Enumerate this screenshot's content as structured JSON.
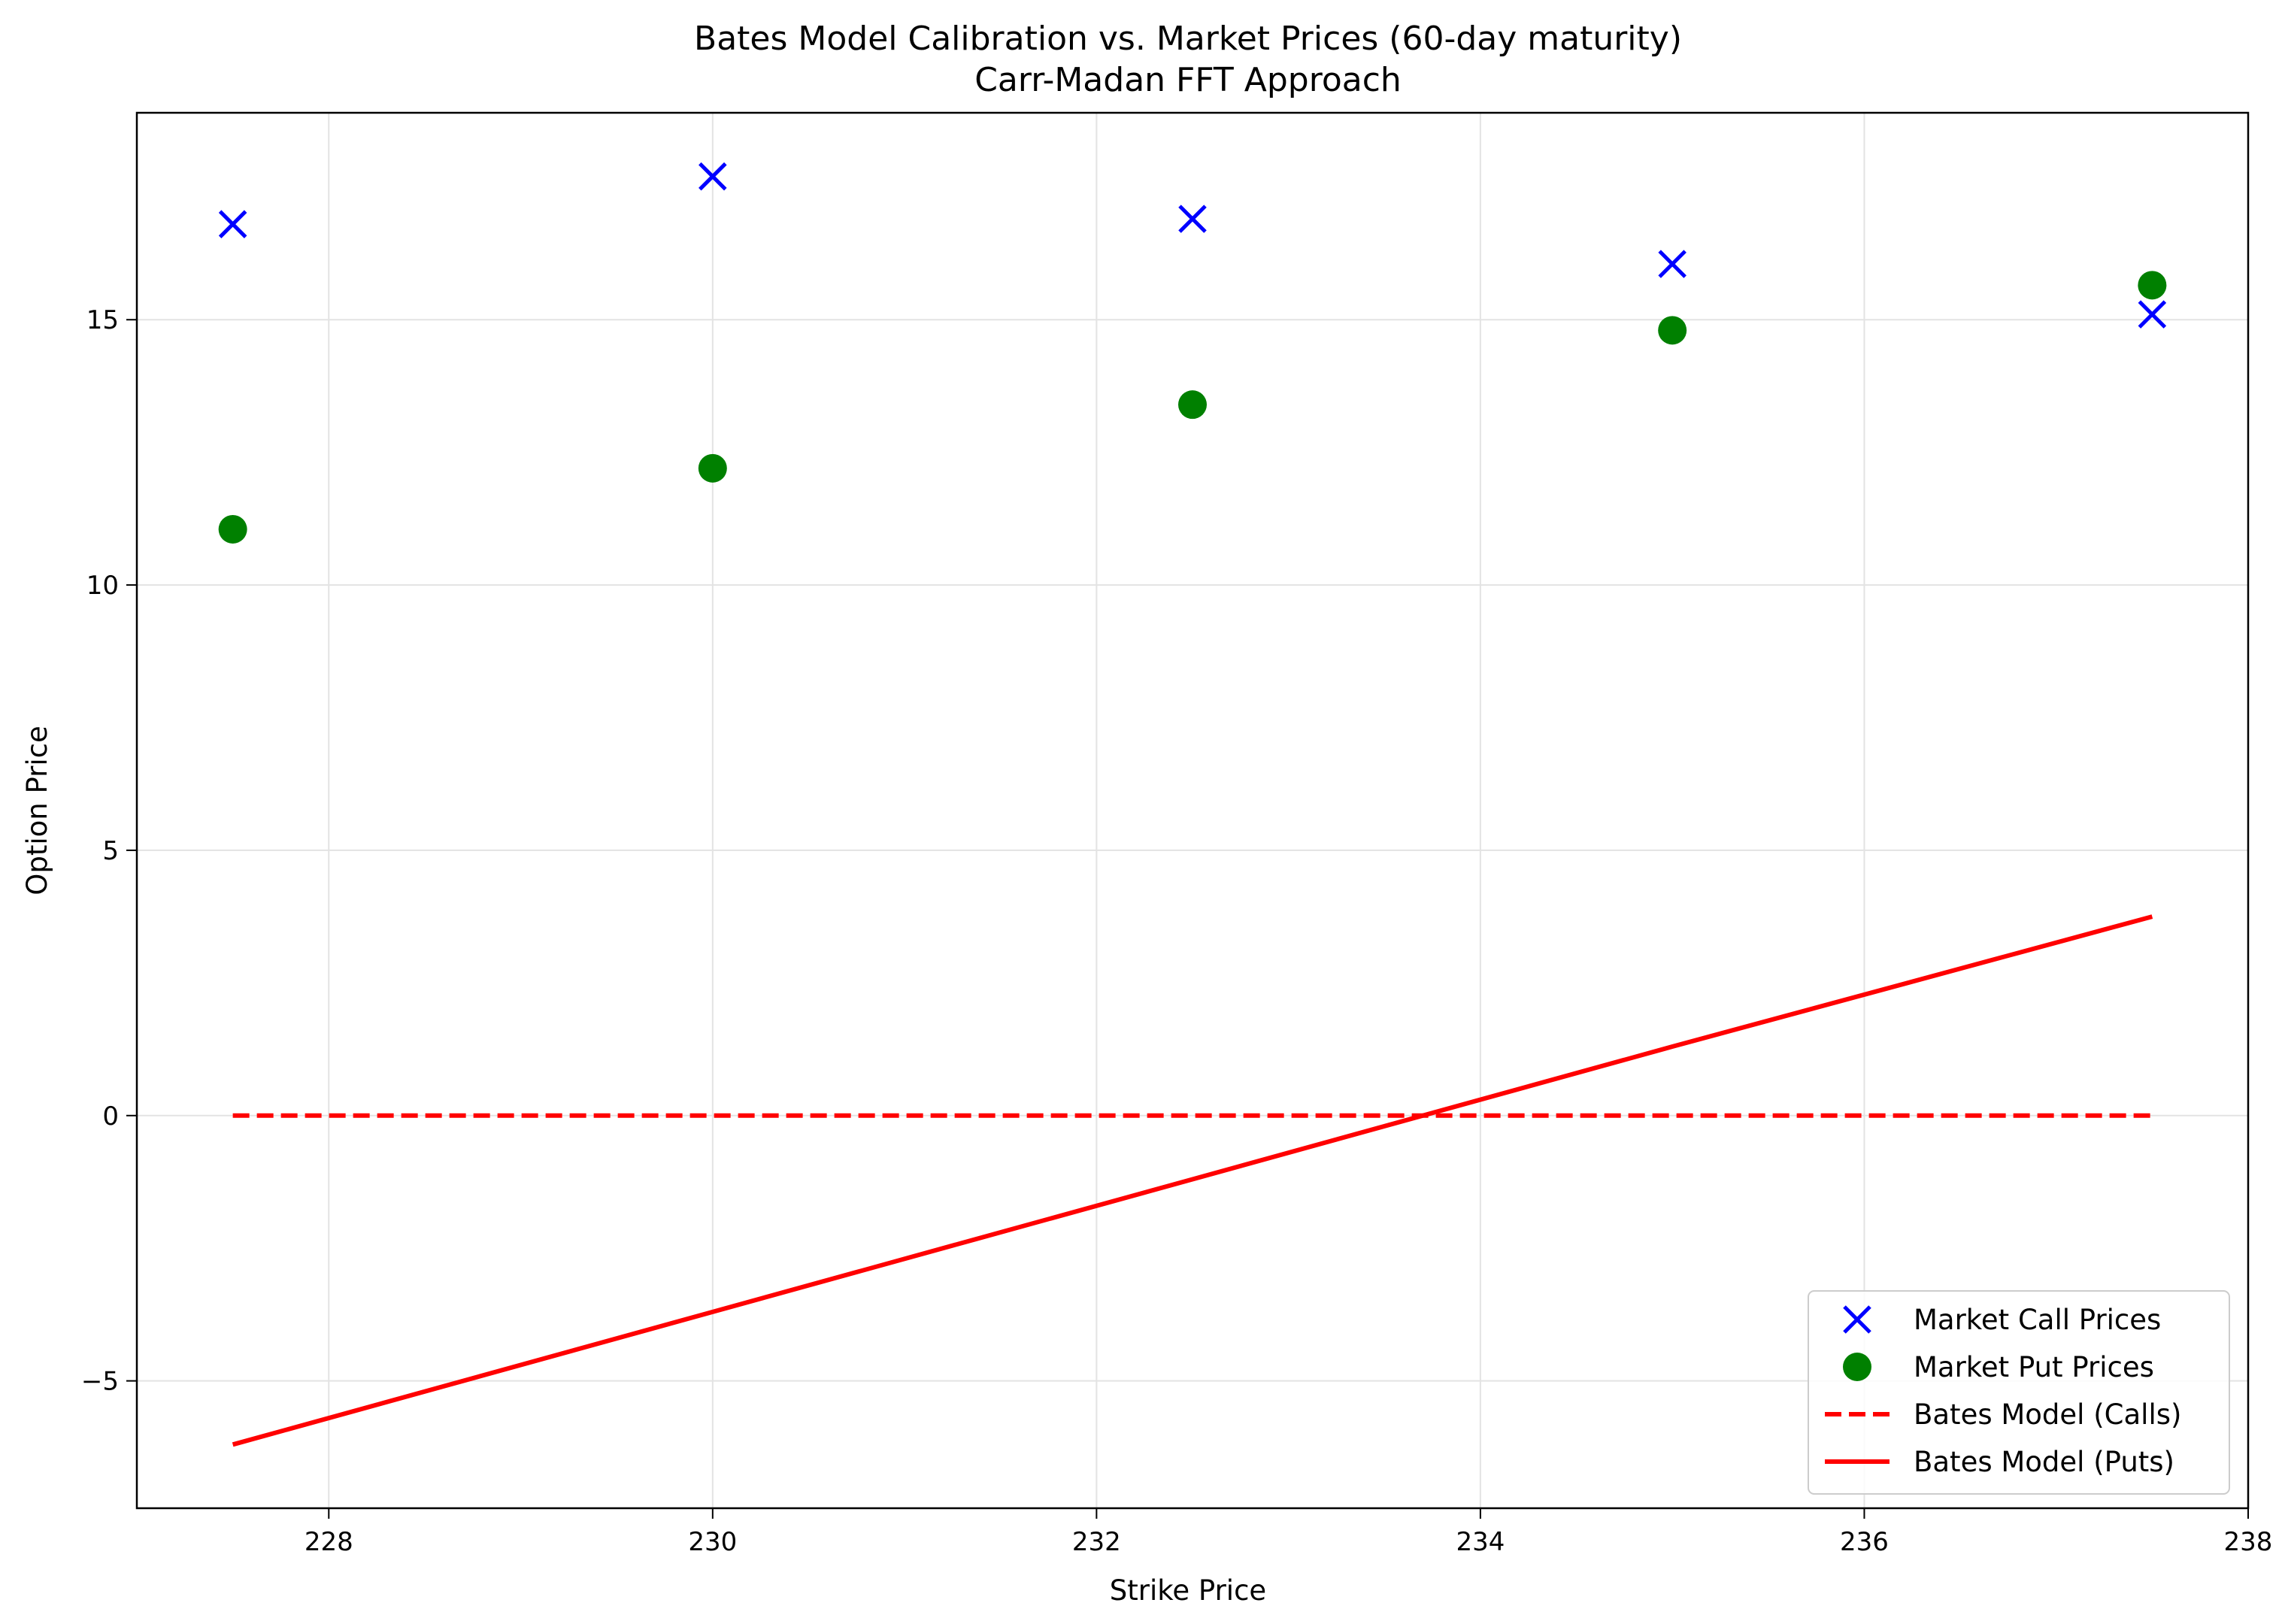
{
  "chart_data": {
    "type": "scatter",
    "title": "Bates Model Calibration vs. Market Prices (60-day maturity)",
    "subtitle": "Carr-Madan FFT Approach",
    "xlabel": "Strike Price",
    "ylabel": "Option Price",
    "xlim": [
      227.0,
      238.0
    ],
    "ylim": [
      -7.4,
      18.9
    ],
    "xticks": [
      228,
      230,
      232,
      234,
      236,
      238
    ],
    "xtick_labels": [
      "228",
      "230",
      "232",
      "234",
      "236",
      "238"
    ],
    "yticks": [
      -5,
      0,
      5,
      10,
      15
    ],
    "ytick_labels": [
      "−5",
      "0",
      "5",
      "10",
      "15"
    ],
    "grid": true,
    "legend_position": "lower-right",
    "series": [
      {
        "name": "Market Call Prices",
        "kind": "scatter",
        "marker": "x",
        "color": "#0000ff",
        "x": [
          227.5,
          230.0,
          232.5,
          235.0,
          237.5
        ],
        "y": [
          16.8,
          17.7,
          16.9,
          16.05,
          15.1
        ]
      },
      {
        "name": "Market Put Prices",
        "kind": "scatter",
        "marker": "o",
        "color": "#008000",
        "x": [
          227.5,
          230.0,
          232.5,
          235.0,
          237.5
        ],
        "y": [
          11.05,
          12.2,
          13.4,
          14.8,
          15.65
        ]
      },
      {
        "name": "Bates Model (Calls)",
        "kind": "line",
        "style": "dashed",
        "color": "#ff0000",
        "x": [
          227.5,
          230.0,
          232.5,
          235.0,
          237.5
        ],
        "y": [
          0.0,
          0.0,
          0.0,
          0.0,
          0.0
        ]
      },
      {
        "name": "Bates Model (Puts)",
        "kind": "line",
        "style": "solid",
        "color": "#ff0000",
        "x": [
          227.5,
          230.0,
          232.5,
          235.0,
          237.5
        ],
        "y": [
          -6.2,
          -3.7,
          -1.2,
          1.3,
          3.75
        ]
      }
    ]
  }
}
